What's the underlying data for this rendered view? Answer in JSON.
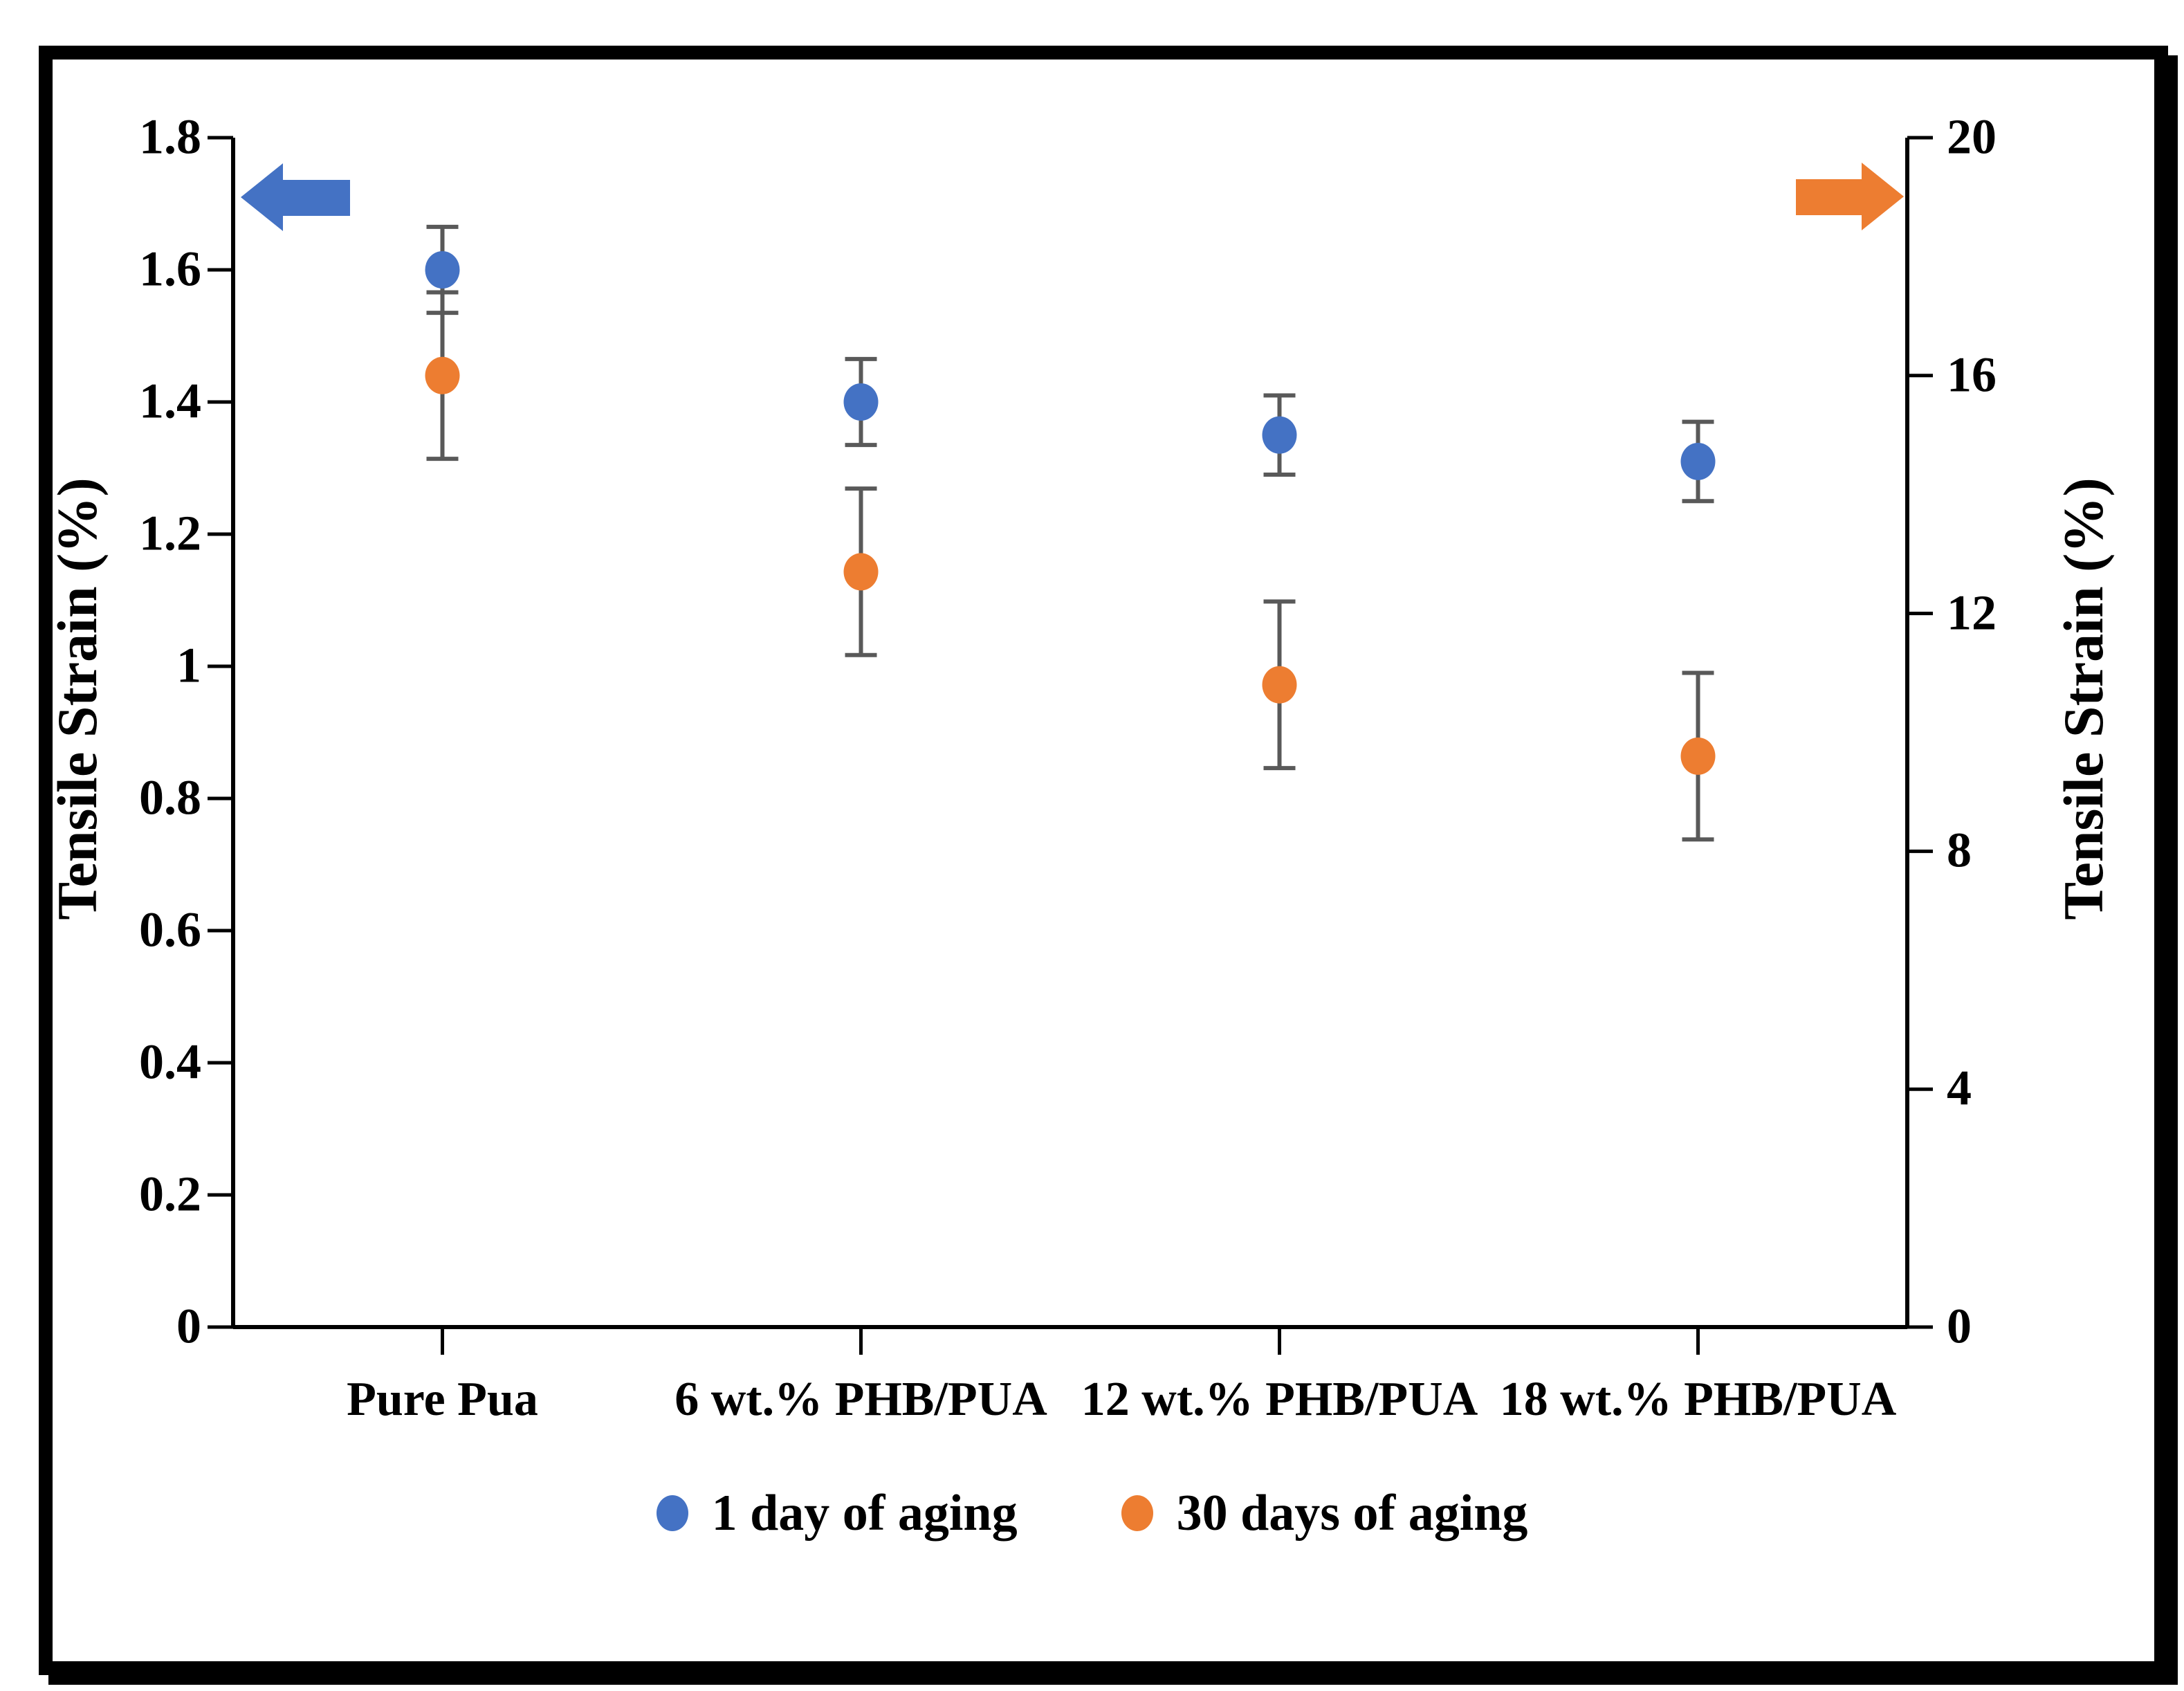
{
  "chart_data": {
    "type": "scatter",
    "title": "",
    "categories": [
      "Pure Pua",
      "6 wt.% PHB/PUA",
      "12 wt.% PHB/PUA",
      "18 wt.% PHB/PUA"
    ],
    "series": [
      {
        "name": "1 day of aging",
        "color": "#4472C4",
        "axis": "left",
        "values": [
          1.6,
          1.4,
          1.35,
          1.31
        ],
        "errors": [
          0.065,
          0.065,
          0.06,
          0.06
        ]
      },
      {
        "name": "30 days of aging",
        "color": "#ED7D31",
        "axis": "right",
        "values": [
          16.0,
          12.7,
          10.8,
          9.6
        ],
        "errors": [
          1.4,
          1.4,
          1.4,
          1.4
        ]
      }
    ],
    "left_axis": {
      "title": "Tensile Strain (%)",
      "min": 0,
      "max": 1.8,
      "ticks": [
        "1.8",
        "1.6",
        "1.4",
        "1.2",
        "1",
        "0.8",
        "0.6",
        "0.4",
        "0.2",
        "0"
      ]
    },
    "right_axis": {
      "title": "Tensile Strain (%)",
      "min": 0,
      "max": 20,
      "ticks": [
        "20",
        "16",
        "12",
        "8",
        "4",
        "0"
      ]
    },
    "legend": {
      "position": "bottom",
      "entries": [
        "1 day of aging",
        "30 days of aging"
      ]
    },
    "annotations": [
      {
        "type": "block-arrow",
        "direction": "left",
        "color": "#4472C4",
        "points_to_axis": "left"
      },
      {
        "type": "block-arrow",
        "direction": "right",
        "color": "#ED7D31",
        "points_to_axis": "right"
      }
    ],
    "grid": "off",
    "error_bar_color": "#595959",
    "axis_color": "#000000"
  }
}
